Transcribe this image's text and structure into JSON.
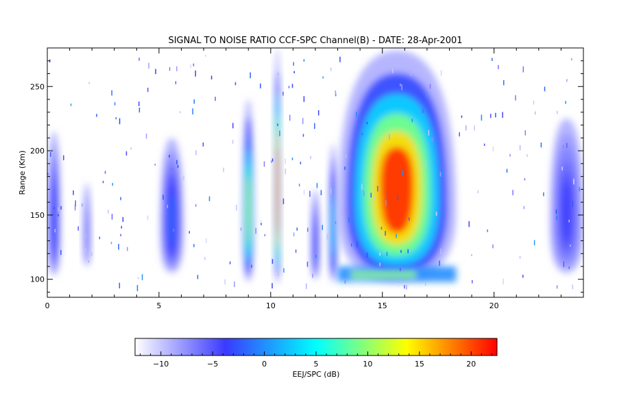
{
  "chart_data": {
    "type": "heatmap",
    "title": "SIGNAL TO NOISE RATIO CCF-SPC Channel(B) - DATE: 28-Apr-2001",
    "xlabel": "",
    "ylabel": "Range (Km)",
    "xlim": [
      0,
      24
    ],
    "ylim": [
      86,
      280
    ],
    "x_ticks": [
      0,
      5,
      10,
      15,
      20
    ],
    "y_ticks": [
      100,
      150,
      200,
      250
    ],
    "grid": false,
    "colorbar": {
      "label": "EEJ/SPC (dB)",
      "range": [
        -12.5,
        22.5
      ],
      "ticks": [
        -10,
        -5,
        0,
        5,
        10,
        15,
        20
      ],
      "colors": [
        "#ffffff",
        "#3a3aff",
        "#00ffff",
        "#ffff00",
        "#ff0000"
      ]
    },
    "echo_regions": [
      {
        "t_start": 0.0,
        "t_end": 0.6,
        "range_low": 103,
        "range_high": 215,
        "peak_snr_db": -3
      },
      {
        "t_start": 1.6,
        "t_end": 1.95,
        "range_low": 110,
        "range_high": 175,
        "peak_snr_db": -6
      },
      {
        "t_start": 5.05,
        "t_end": 6.1,
        "range_low": 105,
        "range_high": 210,
        "peak_snr_db": -2
      },
      {
        "t_start": 8.75,
        "t_end": 9.25,
        "range_low": 98,
        "range_high": 240,
        "peak_snr_db": 11
      },
      {
        "t_start": 10.15,
        "t_end": 10.45,
        "range_low": 96,
        "range_high": 280,
        "peak_snr_db": 21
      },
      {
        "t_start": 11.8,
        "t_end": 12.2,
        "range_low": 100,
        "range_high": 170,
        "peak_snr_db": -3
      },
      {
        "t_start": 12.6,
        "t_end": 13.0,
        "range_low": 98,
        "range_high": 205,
        "peak_snr_db": 3
      },
      {
        "t_start": 13.0,
        "t_end": 18.3,
        "range_low": 98,
        "range_high": 278,
        "peak_snr_db": 21
      },
      {
        "t_start": 22.5,
        "t_end": 24.0,
        "range_low": 105,
        "range_high": 225,
        "peak_snr_db": -4
      }
    ]
  }
}
